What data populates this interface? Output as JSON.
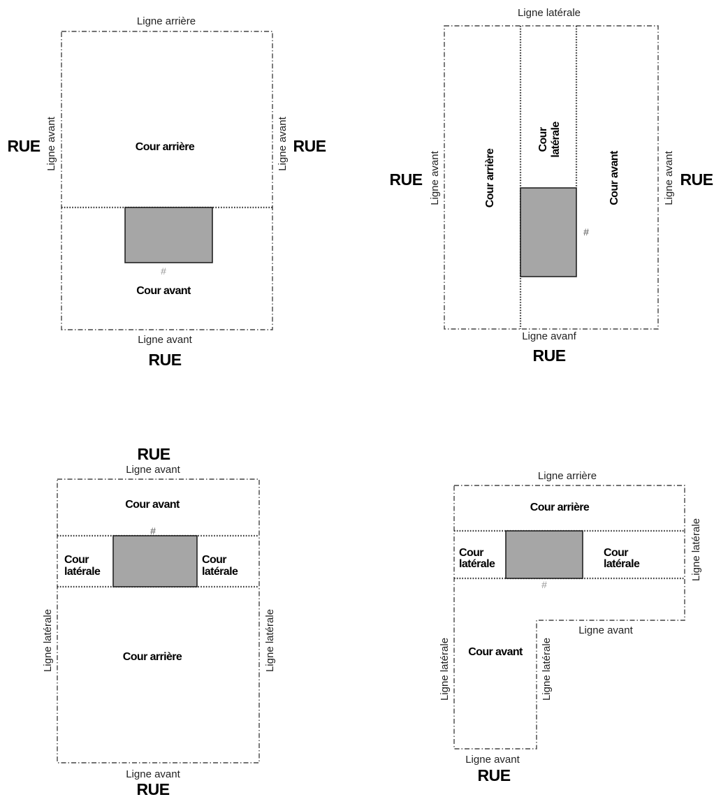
{
  "colors": {
    "building": "#a6a6a6",
    "line": "#444444",
    "text": "#000000"
  },
  "diagrams": {
    "d1": {
      "top_line": "Ligne arrière",
      "left_line": "Ligne avant",
      "right_line": "Ligne avant",
      "bottom_line": "Ligne avant",
      "left_street": "RUE",
      "right_street": "RUE",
      "bottom_street": "RUE",
      "rear_yard": "Cour arrière",
      "front_yard": "Cour avant",
      "marker": "#"
    },
    "d2": {
      "top_line": "Ligne latérale",
      "left_line": "Ligne avant",
      "right_line": "Ligne avant",
      "bottom_line": "Ligne avanf",
      "left_street": "RUE",
      "right_street": "RUE",
      "bottom_street": "RUE",
      "rear_yard": "Cour arrière",
      "side_yard_1": "Cour",
      "side_yard_2": "latérale",
      "front_yard": "Cour avant",
      "marker": "#"
    },
    "d3": {
      "top_street": "RUE",
      "top_line": "Ligne avant",
      "front_yard": "Cour avant",
      "marker": "#",
      "left_side_1": "Cour",
      "left_side_2": "latérale",
      "right_side_1": "Cour",
      "right_side_2": "latérale",
      "rear_yard": "Cour arrière",
      "left_line": "Ligne latérale",
      "right_line": "Ligne latérale",
      "bottom_line": "Ligne avant",
      "bottom_street": "RUE"
    },
    "d4": {
      "top_line": "Ligne arrière",
      "rear_yard": "Cour arrière",
      "left_side_1": "Cour",
      "left_side_2": "latérale",
      "right_side_1": "Cour",
      "right_side_2": "latérale",
      "marker": "#",
      "right_line": "Ligne latérale",
      "inner_line": "Ligne avant",
      "front_yard": "Cour avant",
      "left_line": "Ligne latérale",
      "middle_line": "Ligne latérale",
      "bottom_line": "Ligne avant",
      "bottom_street": "RUE"
    }
  }
}
